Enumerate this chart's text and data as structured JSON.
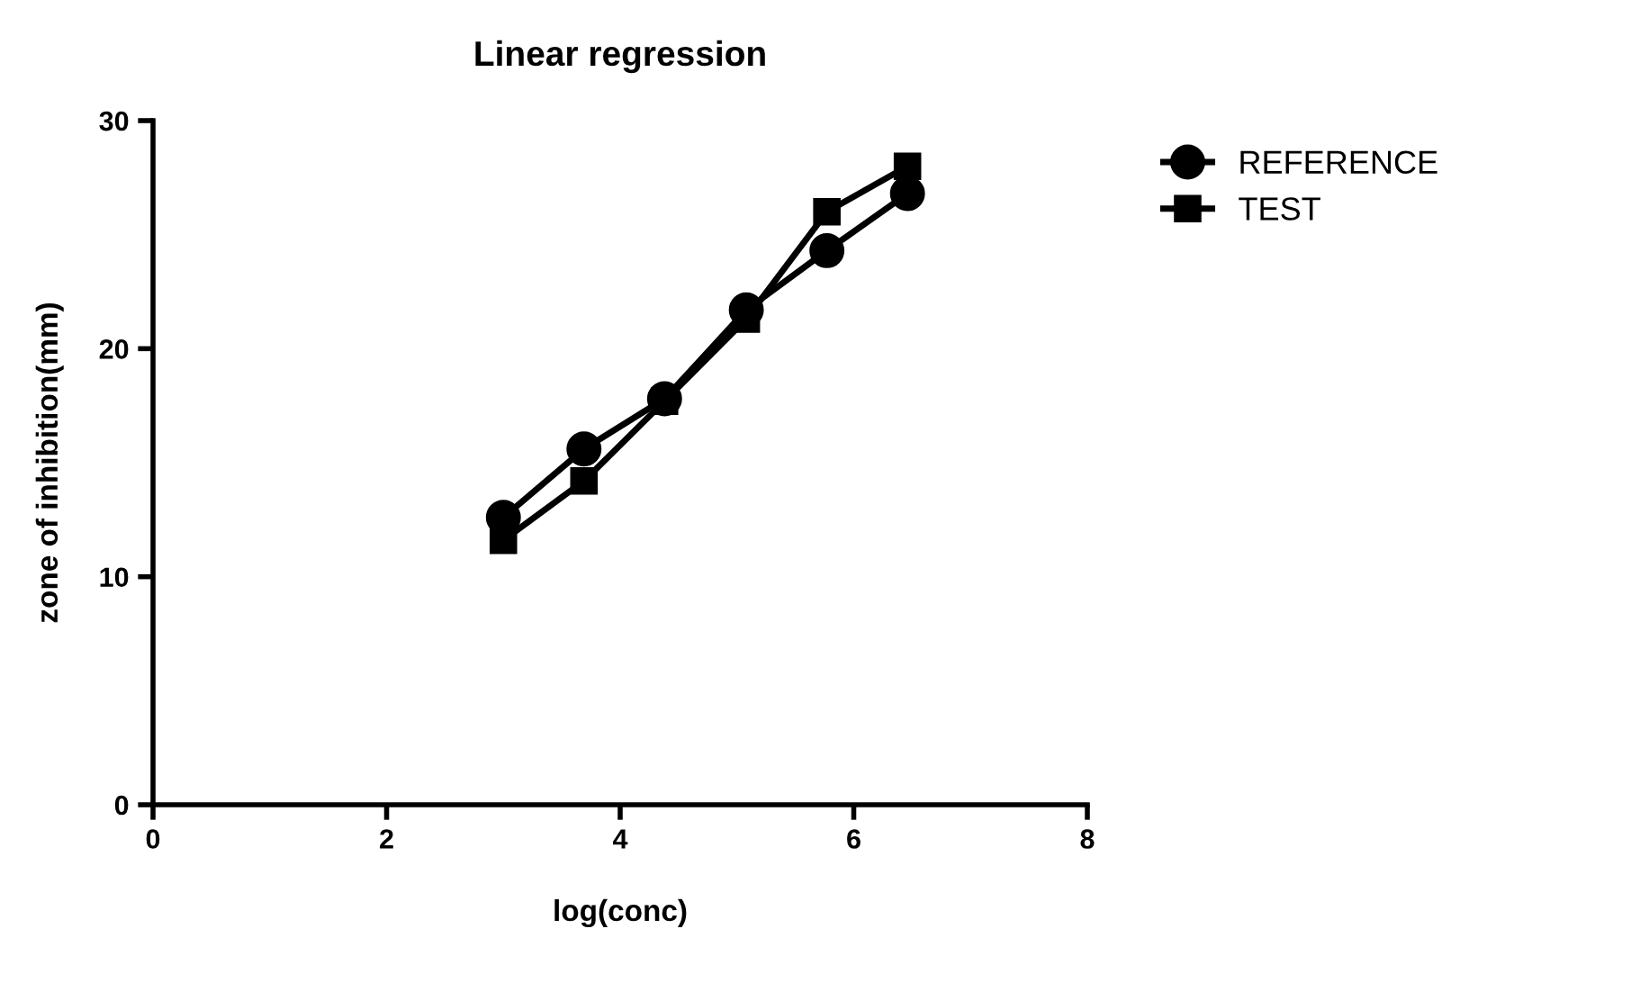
{
  "chart_data": {
    "type": "line",
    "title": "Linear regression",
    "xlabel": "log(conc)",
    "ylabel": "zone of inhibition(mm)",
    "series": [
      {
        "name": "REFERENCE",
        "color": "#000000",
        "marker": "circle",
        "x": [
          3.0,
          3.69,
          4.38,
          5.08,
          5.77,
          6.46
        ],
        "values": [
          12.6,
          15.6,
          17.8,
          21.7,
          24.3,
          26.8
        ]
      },
      {
        "name": "TEST",
        "color": "#000000",
        "marker": "square",
        "x": [
          3.0,
          3.69,
          4.38,
          5.08,
          5.77,
          6.46
        ],
        "values": [
          11.6,
          14.2,
          17.7,
          21.3,
          26.0,
          28.0
        ]
      }
    ],
    "xlim": [
      0,
      8
    ],
    "xticks": [
      0,
      2,
      4,
      6,
      8
    ],
    "ylim": [
      0,
      30
    ],
    "yticks": [
      0,
      10,
      20,
      30
    ],
    "grid": false,
    "legend": "top right",
    "line_style": "solid"
  }
}
